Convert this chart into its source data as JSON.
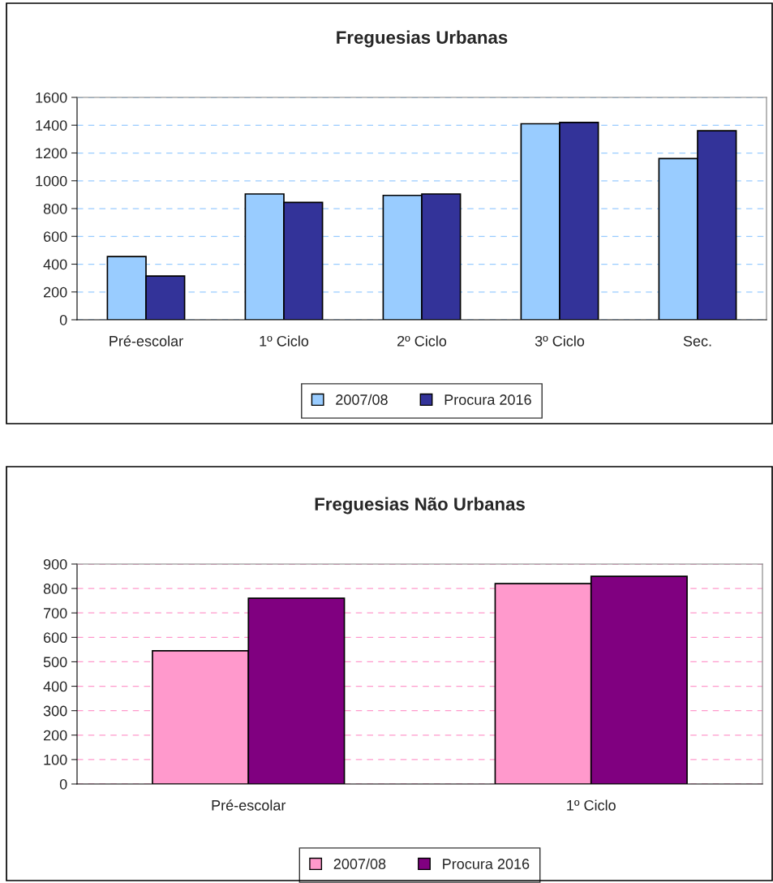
{
  "chart_data": [
    {
      "type": "bar",
      "title": "Freguesias Urbanas",
      "categories": [
        "Pré-escolar",
        "1º Ciclo",
        "2º Ciclo",
        "3º Ciclo",
        "Sec."
      ],
      "series": [
        {
          "name": "2007/08",
          "color": "#99ccff",
          "values": [
            455,
            905,
            895,
            1410,
            1160
          ]
        },
        {
          "name": "Procura 2016",
          "color": "#333399",
          "values": [
            315,
            845,
            905,
            1420,
            1360
          ]
        }
      ],
      "ylim": [
        0,
        1600
      ],
      "yticks": [
        0,
        200,
        400,
        600,
        800,
        1000,
        1200,
        1400,
        1600
      ],
      "grid": "y",
      "legend": "bottom"
    },
    {
      "type": "bar",
      "title": "Freguesias Não Urbanas",
      "categories": [
        "Pré-escolar",
        "1º Ciclo"
      ],
      "series": [
        {
          "name": "2007/08",
          "color": "#ff99cc",
          "values": [
            545,
            820
          ]
        },
        {
          "name": "Procura 2016",
          "color": "#800080",
          "values": [
            760,
            850
          ]
        }
      ],
      "ylim": [
        0,
        900
      ],
      "yticks": [
        0,
        100,
        200,
        300,
        400,
        500,
        600,
        700,
        800,
        900
      ],
      "grid": "y",
      "legend": "bottom"
    }
  ]
}
